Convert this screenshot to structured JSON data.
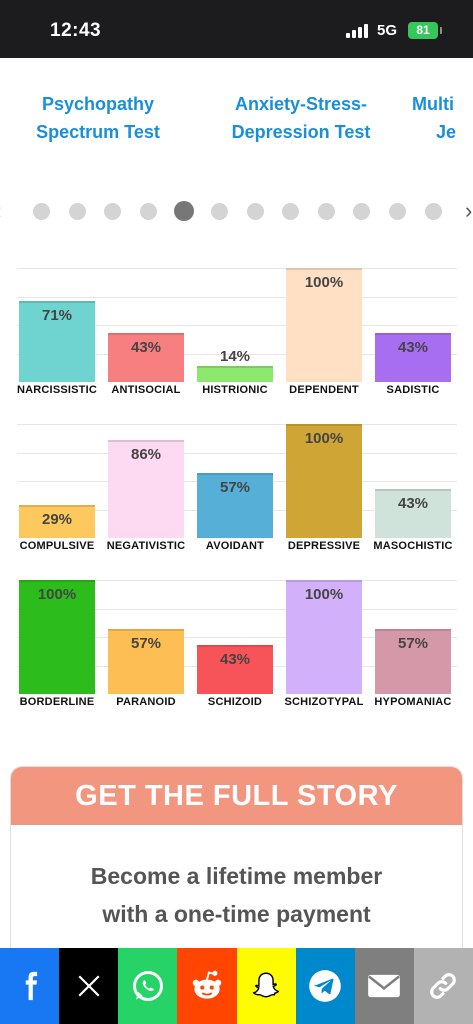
{
  "status": {
    "time": "12:43",
    "network": "5G",
    "battery": "81"
  },
  "carousel": {
    "titles": [
      {
        "lines": [
          "Psychopathy",
          "Spectrum Test"
        ]
      },
      {
        "lines": [
          "Anxiety-Stress-",
          "Depression Test"
        ]
      },
      {
        "lines": [
          "Multi",
          "Je"
        ]
      }
    ],
    "dot_count": 12,
    "active_dot": 4
  },
  "charts": [
    {
      "categories": [
        "NARCISSISTIC",
        "ANTISOCIAL",
        "HISTRIONIC",
        "DEPENDENT",
        "SADISTIC"
      ],
      "values": [
        71,
        43,
        14,
        100,
        43
      ],
      "colors": [
        "#6fd3cf",
        "#f77f7f",
        "#8de86e",
        "#ffe0c4",
        "#a86ef2"
      ]
    },
    {
      "categories": [
        "COMPULSIVE",
        "NEGATIVISTIC",
        "AVOIDANT",
        "DEPRESSIVE",
        "MASOCHISTIC"
      ],
      "values": [
        29,
        86,
        57,
        100,
        43
      ],
      "colors": [
        "#fdc85e",
        "#fdd9f2",
        "#56afd6",
        "#cfa636",
        "#cfe3db"
      ]
    },
    {
      "categories": [
        "BORDERLINE",
        "PARANOID",
        "SCHIZOID",
        "SCHIZOTYPAL",
        "HYPOMANIAC"
      ],
      "values": [
        100,
        57,
        43,
        100,
        57
      ],
      "colors": [
        "#2cbc1c",
        "#fdbf53",
        "#f7545a",
        "#d2b1fa",
        "#d598a8"
      ]
    }
  ],
  "membership": {
    "header": "GET THE FULL STORY",
    "lines": [
      "Become a lifetime member",
      "with a one-time payment"
    ]
  },
  "share": [
    {
      "icon": "facebook-icon",
      "label": "Facebook",
      "color": "#1877f2"
    },
    {
      "icon": "x-icon",
      "label": "X",
      "color": "#000000"
    },
    {
      "icon": "whatsapp-icon",
      "label": "WhatsApp",
      "color": "#25d366"
    },
    {
      "icon": "reddit-icon",
      "label": "Reddit",
      "color": "#ff4500"
    },
    {
      "icon": "snapchat-icon",
      "label": "Snapchat",
      "color": "#fffc00"
    },
    {
      "icon": "telegram-icon",
      "label": "Telegram",
      "color": "#0088cc"
    },
    {
      "icon": "email-icon",
      "label": "Email",
      "color": "#7f7f7f"
    },
    {
      "icon": "link-icon",
      "label": "Copy link",
      "color": "#b2b2b2"
    }
  ]
}
